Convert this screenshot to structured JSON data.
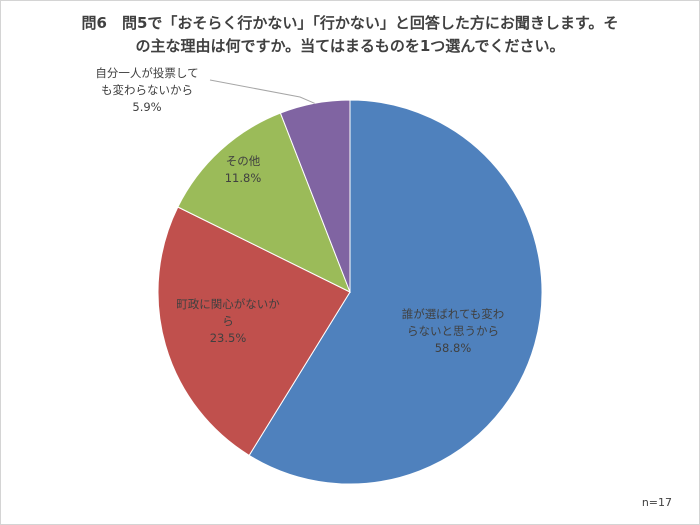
{
  "chart_data": {
    "type": "pie",
    "title": "問6　問5で「おそらく行かない」「行かない」と回答した方にお聞きします。その主な理由は何ですか。当てはまるものを1つ選んでください。",
    "title_lines": [
      "問6　問5で「おそらく行かない」「行かない」と回答した方にお聞きします。そ",
      "の主な理由は何ですか。当てはまるものを1つ選んでください。"
    ],
    "slices": [
      {
        "label_lines": [
          "誰が選ばれても変わ",
          "らないと思うから"
        ],
        "percent_label": "58.8%",
        "value": 58.8,
        "color": "#4F81BD"
      },
      {
        "label_lines": [
          "町政に関心がないか",
          "ら"
        ],
        "percent_label": "23.5%",
        "value": 23.5,
        "color": "#C0504D"
      },
      {
        "label_lines": [
          "その他"
        ],
        "percent_label": "11.8%",
        "value": 11.8,
        "color": "#9BBB59"
      },
      {
        "label_lines": [
          "自分一人が投票して",
          "も変わらないから"
        ],
        "percent_label": "5.9%",
        "value": 5.9,
        "color": "#8064A2"
      }
    ],
    "start": "12 o'clock",
    "direction": "clockwise",
    "legend": "none",
    "note": "n=17"
  }
}
